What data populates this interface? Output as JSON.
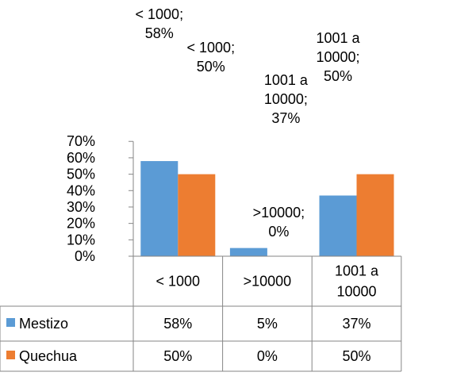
{
  "chart_data": {
    "type": "bar",
    "categories": [
      "< 1000",
      ">10000",
      "1001 a 10000"
    ],
    "series": [
      {
        "name": "Mestizo",
        "color": "#5B9BD5",
        "values": [
          58,
          5,
          37
        ],
        "table_values": [
          "58%",
          "5%",
          "37%"
        ]
      },
      {
        "name": "Quechua",
        "color": "#ED7D31",
        "values": [
          50,
          0,
          50
        ],
        "table_values": [
          "50%",
          "0%",
          "50%"
        ]
      }
    ],
    "y_ticks": [
      "0%",
      "10%",
      "20%",
      "30%",
      "40%",
      "50%",
      "60%",
      "70%"
    ],
    "ylim": [
      0,
      70
    ],
    "grid": false,
    "data_labels": [
      [
        "< 1000;",
        "58%"
      ],
      [
        "< 1000;",
        "50%"
      ],
      [
        ">10000;",
        "0%"
      ],
      [
        "1001 a",
        "10000;",
        "37%"
      ],
      [
        "1001 a",
        "10000;",
        "50%"
      ]
    ],
    "data_table": true
  }
}
